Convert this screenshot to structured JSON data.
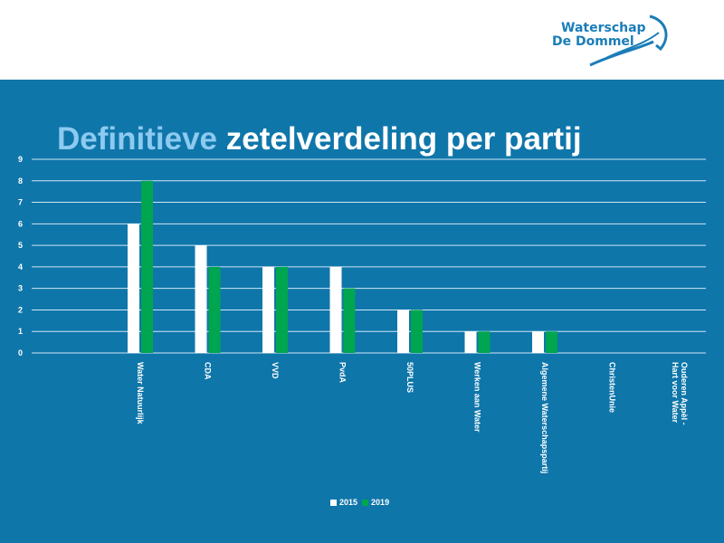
{
  "logo": {
    "line1": "Waterschap",
    "line2": "De Dommel"
  },
  "title": {
    "part1": "Definitieve",
    "part2": "zetelverdeling per partij"
  },
  "colors": {
    "background": "#0f76aa",
    "2015": "#ffffff",
    "2019": "#00a550",
    "title_accent": "#8ccaf0"
  },
  "chart_data": {
    "type": "bar",
    "categories": [
      "Water Natuurlijk",
      "CDA",
      "VVD",
      "PvdA",
      "50PLUS",
      "Werken aan Water",
      "Algemene Waterschapspartij",
      "ChristenUnie",
      "Ouderen Appèl -\nHart voor Water"
    ],
    "series": [
      {
        "name": "2015",
        "values": [
          6,
          5,
          4,
          4,
          2,
          1,
          1,
          0,
          0
        ]
      },
      {
        "name": "2019",
        "values": [
          8,
          4,
          4,
          3,
          2,
          1,
          1,
          0,
          0
        ]
      }
    ],
    "ylim": [
      0,
      9
    ],
    "yticks": [
      "0",
      "1",
      "2",
      "3",
      "4",
      "5",
      "6",
      "7",
      "8",
      "9"
    ],
    "grid": true,
    "legend": "bottom"
  }
}
